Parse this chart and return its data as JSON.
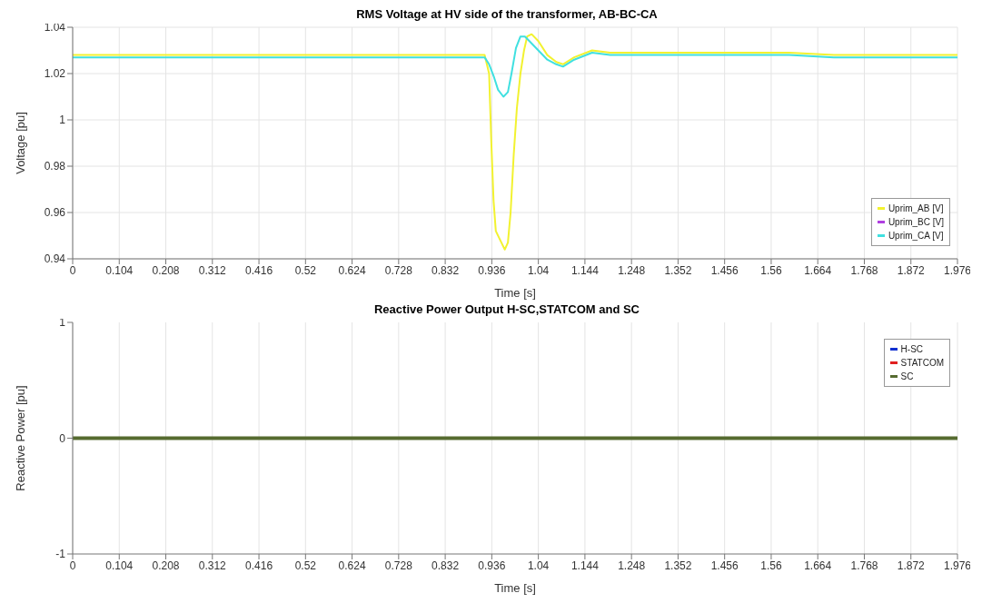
{
  "chart_data": [
    {
      "type": "line",
      "title": "RMS Voltage at HV side of the transformer, AB-BC-CA",
      "xlabel": "Time [s]",
      "ylabel": "Voltage [pu]",
      "xlim": [
        0,
        1.976
      ],
      "xticks": [
        0,
        0.104,
        0.208,
        0.312,
        0.416,
        0.52,
        0.624,
        0.728,
        0.832,
        0.936,
        1.04,
        1.144,
        1.248,
        1.352,
        1.456,
        1.56,
        1.664,
        1.768,
        1.872,
        1.976
      ],
      "ylim": [
        0.94,
        1.04
      ],
      "yticks": [
        0.94,
        0.96,
        0.98,
        1,
        1.02,
        1.04
      ],
      "grid": true,
      "legend": "bottom right",
      "marker": "none",
      "line_style": "solid",
      "series": [
        {
          "name": "Uprim_AB [V]",
          "color": "#f2f230",
          "x": [
            0,
            0.1,
            0.2,
            0.3,
            0.4,
            0.5,
            0.6,
            0.7,
            0.8,
            0.9,
            0.92,
            0.93,
            0.935,
            0.94,
            0.945,
            0.955,
            0.965,
            0.972,
            0.978,
            0.985,
            0.992,
            1.0,
            1.008,
            1.015,
            1.025,
            1.04,
            1.06,
            1.08,
            1.095,
            1.12,
            1.16,
            1.2,
            1.3,
            1.4,
            1.5,
            1.6,
            1.7,
            1.8,
            1.9,
            1.976
          ],
          "values": [
            1.028,
            1.028,
            1.028,
            1.028,
            1.028,
            1.028,
            1.028,
            1.028,
            1.028,
            1.028,
            1.028,
            1.02,
            0.99,
            0.965,
            0.952,
            0.948,
            0.944,
            0.947,
            0.96,
            0.985,
            1.005,
            1.02,
            1.03,
            1.036,
            1.037,
            1.034,
            1.028,
            1.025,
            1.024,
            1.027,
            1.03,
            1.029,
            1.029,
            1.029,
            1.029,
            1.029,
            1.028,
            1.028,
            1.028,
            1.028
          ]
        },
        {
          "name": "Uprim_BC [V]",
          "color": "#b040e0",
          "values": [
            null
          ]
        },
        {
          "name": "Uprim_CA [V]",
          "color": "#40e0e0",
          "x": [
            0,
            0.1,
            0.2,
            0.3,
            0.4,
            0.5,
            0.6,
            0.7,
            0.8,
            0.9,
            0.92,
            0.93,
            0.94,
            0.95,
            0.962,
            0.972,
            0.98,
            0.99,
            1.0,
            1.01,
            1.02,
            1.04,
            1.06,
            1.08,
            1.095,
            1.12,
            1.16,
            1.2,
            1.3,
            1.4,
            1.5,
            1.6,
            1.7,
            1.8,
            1.9,
            1.976
          ],
          "values": [
            1.027,
            1.027,
            1.027,
            1.027,
            1.027,
            1.027,
            1.027,
            1.027,
            1.027,
            1.027,
            1.027,
            1.024,
            1.019,
            1.013,
            1.01,
            1.012,
            1.02,
            1.031,
            1.036,
            1.036,
            1.034,
            1.03,
            1.026,
            1.024,
            1.023,
            1.026,
            1.029,
            1.028,
            1.028,
            1.028,
            1.028,
            1.028,
            1.027,
            1.027,
            1.027,
            1.027
          ]
        }
      ]
    },
    {
      "type": "line",
      "title": "Reactive Power Output H-SC,STATCOM and SC",
      "xlabel": "Time [s]",
      "ylabel": "Reactive Power [pu]",
      "xlim": [
        0,
        1.976
      ],
      "xticks": [
        0,
        0.104,
        0.208,
        0.312,
        0.416,
        0.52,
        0.624,
        0.728,
        0.832,
        0.936,
        1.04,
        1.144,
        1.248,
        1.352,
        1.456,
        1.56,
        1.664,
        1.768,
        1.872,
        1.976
      ],
      "ylim": [
        -1,
        1
      ],
      "yticks": [
        -1,
        0,
        1
      ],
      "grid": "x",
      "legend": "top right",
      "marker": "none",
      "line_style": "solid",
      "series": [
        {
          "name": "H-SC",
          "color": "#1030d0",
          "values": [
            null
          ]
        },
        {
          "name": "STATCOM",
          "color": "#e02020",
          "values": [
            null
          ]
        },
        {
          "name": "SC",
          "color": "#566b30",
          "x": [
            0,
            1.976
          ],
          "values": [
            0,
            0
          ]
        }
      ]
    }
  ]
}
